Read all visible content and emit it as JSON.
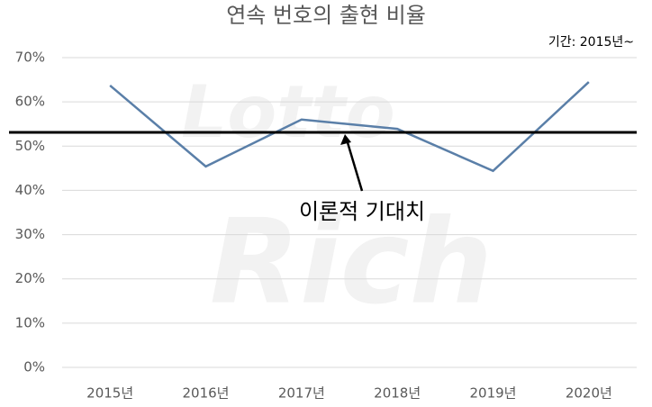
{
  "chart_data": {
    "type": "line",
    "title": "연속 번호의 출현 비율",
    "note": "기간: 2015년~",
    "watermark": [
      "Lotto",
      "Rich"
    ],
    "categories": [
      "2015년",
      "2016년",
      "2017년",
      "2018년",
      "2019년",
      "2020년"
    ],
    "values": [
      63.7,
      45.4,
      56.0,
      53.9,
      44.4,
      64.5
    ],
    "color": "#5a7fa8",
    "ylim": [
      0,
      70
    ],
    "yticks": [
      {
        "value": 0,
        "label": "0%"
      },
      {
        "value": 10,
        "label": "10%"
      },
      {
        "value": 20,
        "label": "20%"
      },
      {
        "value": 30,
        "label": "30%"
      },
      {
        "value": 40,
        "label": "40%"
      },
      {
        "value": 50,
        "label": "50%"
      },
      {
        "value": 60,
        "label": "60%"
      },
      {
        "value": 70,
        "label": "70%"
      }
    ],
    "grid": true,
    "reference_line": {
      "value": 53.1,
      "label": "이론적 기대치",
      "color": "#000000"
    }
  }
}
